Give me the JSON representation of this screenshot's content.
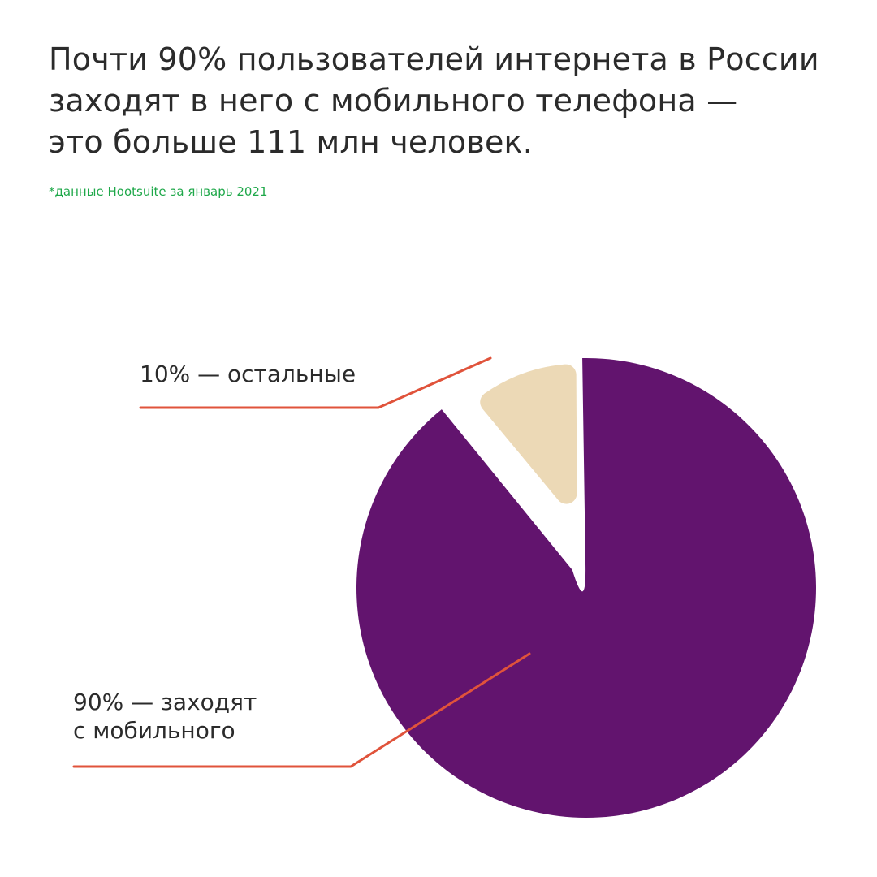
{
  "header": {
    "title_lines": [
      "Почти 90% пользователей интернета в России",
      "заходят в него с мобильного телефона —",
      "это больше 111 млн человек."
    ],
    "source_note": "*данные Hootsuite за январь 2021"
  },
  "chart_data": {
    "type": "pie",
    "unit": "%",
    "slices": [
      {
        "label_lines": [
          "10% — остальные"
        ],
        "value": 10,
        "color": "#ecd9b6",
        "exploded": true
      },
      {
        "label_lines": [
          "90% — заходят",
          "с мобильного"
        ],
        "value": 90,
        "color": "#62146e",
        "exploded": false
      }
    ],
    "leader_line_color": "#e0533b",
    "legend": "none"
  }
}
